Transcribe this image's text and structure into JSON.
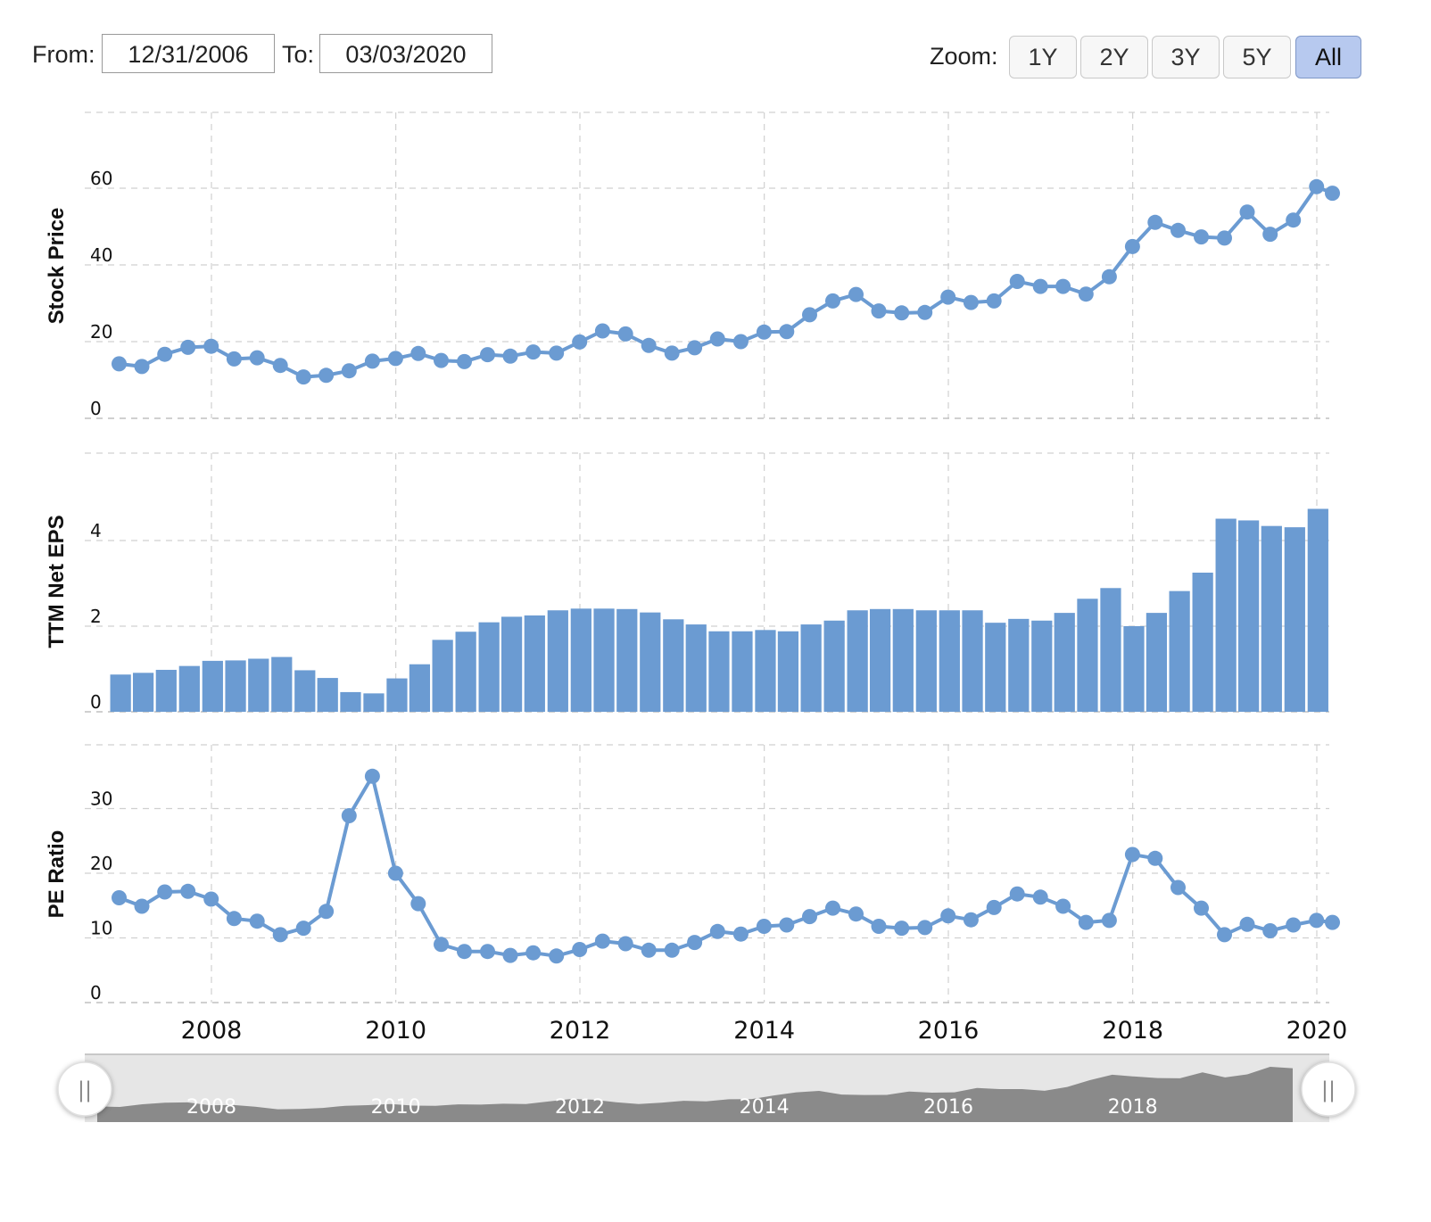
{
  "controls": {
    "from_label": "From:",
    "from_value": "12/31/2006",
    "to_label": "To:",
    "to_value": "03/03/2020",
    "zoom_label": "Zoom:",
    "zoom_options": [
      "1Y",
      "2Y",
      "3Y",
      "5Y",
      "All"
    ],
    "zoom_active": "All",
    "navigator_handle_glyph": "||"
  },
  "colors": {
    "series": "#6b9bd2",
    "grid": "#d0d0d0",
    "navigator_fill": "#8a8a8a",
    "navigator_bg": "#e6e6e6",
    "active_button": "#b7c9ef"
  },
  "chart_data": [
    {
      "type": "line",
      "ylabel": "Stock Price",
      "yticks": [
        0,
        20,
        40,
        60
      ],
      "ylim": [
        0,
        80
      ],
      "x_dates": [
        "2006-12-31",
        "2007-03-31",
        "2007-06-30",
        "2007-09-30",
        "2007-12-31",
        "2008-03-31",
        "2008-06-30",
        "2008-09-30",
        "2008-12-31",
        "2009-03-31",
        "2009-06-30",
        "2009-09-30",
        "2009-12-31",
        "2010-03-31",
        "2010-06-30",
        "2010-09-30",
        "2010-12-31",
        "2011-03-31",
        "2011-06-30",
        "2011-09-30",
        "2011-12-31",
        "2012-03-31",
        "2012-06-30",
        "2012-09-30",
        "2012-12-31",
        "2013-03-31",
        "2013-06-30",
        "2013-09-30",
        "2013-12-31",
        "2014-03-31",
        "2014-06-30",
        "2014-09-30",
        "2014-12-31",
        "2015-03-31",
        "2015-06-30",
        "2015-09-30",
        "2015-12-31",
        "2016-03-31",
        "2016-06-30",
        "2016-09-30",
        "2016-12-31",
        "2017-03-31",
        "2017-06-30",
        "2017-09-30",
        "2017-12-31",
        "2018-03-31",
        "2018-06-30",
        "2018-09-30",
        "2018-12-31",
        "2019-03-31",
        "2019-06-30",
        "2019-09-30",
        "2019-12-31",
        "2020-03-03"
      ],
      "values": [
        14.2,
        13.5,
        16.7,
        18.5,
        18.8,
        15.5,
        15.8,
        13.8,
        10.8,
        11.2,
        12.4,
        14.9,
        15.6,
        16.9,
        15.1,
        14.8,
        16.6,
        16.2,
        17.3,
        17.0,
        19.9,
        22.8,
        22.0,
        19.0,
        17.0,
        18.4,
        20.7,
        20.0,
        22.5,
        22.6,
        27.0,
        30.6,
        32.3,
        28.0,
        27.5,
        27.6,
        31.6,
        30.2,
        30.6,
        35.7,
        34.4,
        34.4,
        32.4,
        36.9,
        44.8,
        51.1,
        49.0,
        47.3,
        47.0,
        53.8,
        48.0,
        51.7,
        60.4,
        58.7
      ]
    },
    {
      "type": "bar",
      "ylabel": "TTM Net EPS",
      "yticks": [
        0,
        2,
        4
      ],
      "ylim": [
        0,
        6
      ],
      "x_dates": [
        "2006-12-31",
        "2007-03-31",
        "2007-06-30",
        "2007-09-30",
        "2007-12-31",
        "2008-03-31",
        "2008-06-30",
        "2008-09-30",
        "2008-12-31",
        "2009-03-31",
        "2009-06-30",
        "2009-09-30",
        "2009-12-31",
        "2010-03-31",
        "2010-06-30",
        "2010-09-30",
        "2010-12-31",
        "2011-03-31",
        "2011-06-30",
        "2011-09-30",
        "2011-12-31",
        "2012-03-31",
        "2012-06-30",
        "2012-09-30",
        "2012-12-31",
        "2013-03-31",
        "2013-06-30",
        "2013-09-30",
        "2013-12-31",
        "2014-03-31",
        "2014-06-30",
        "2014-09-30",
        "2014-12-31",
        "2015-03-31",
        "2015-06-30",
        "2015-09-30",
        "2015-12-31",
        "2016-03-31",
        "2016-06-30",
        "2016-09-30",
        "2016-12-31",
        "2017-03-31",
        "2017-06-30",
        "2017-09-30",
        "2017-12-31",
        "2018-03-31",
        "2018-06-30",
        "2018-09-30",
        "2018-12-31",
        "2019-03-31",
        "2019-06-30",
        "2019-09-30",
        "2019-12-31"
      ],
      "values": [
        0.87,
        0.91,
        0.98,
        1.07,
        1.19,
        1.2,
        1.24,
        1.28,
        0.97,
        0.79,
        0.46,
        0.43,
        0.78,
        1.11,
        1.68,
        1.87,
        2.09,
        2.22,
        2.25,
        2.37,
        2.41,
        2.41,
        2.4,
        2.32,
        2.16,
        2.04,
        1.88,
        1.88,
        1.91,
        1.88,
        2.04,
        2.13,
        2.37,
        2.4,
        2.4,
        2.37,
        2.37,
        2.37,
        2.08,
        2.17,
        2.13,
        2.31,
        2.64,
        2.89,
        2.0,
        2.31,
        2.82,
        3.25,
        4.51,
        4.47,
        4.34,
        4.31,
        4.74
      ]
    },
    {
      "type": "line",
      "ylabel": "PE Ratio",
      "yticks": [
        0,
        10,
        20,
        30
      ],
      "ylim": [
        0,
        40
      ],
      "x_dates": [
        "2006-12-31",
        "2007-03-31",
        "2007-06-30",
        "2007-09-30",
        "2007-12-31",
        "2008-03-31",
        "2008-06-30",
        "2008-09-30",
        "2008-12-31",
        "2009-03-31",
        "2009-06-30",
        "2009-09-30",
        "2009-12-31",
        "2010-03-31",
        "2010-06-30",
        "2010-09-30",
        "2010-12-31",
        "2011-03-31",
        "2011-06-30",
        "2011-09-30",
        "2011-12-31",
        "2012-03-31",
        "2012-06-30",
        "2012-09-30",
        "2012-12-31",
        "2013-03-31",
        "2013-06-30",
        "2013-09-30",
        "2013-12-31",
        "2014-03-31",
        "2014-06-30",
        "2014-09-30",
        "2014-12-31",
        "2015-03-31",
        "2015-06-30",
        "2015-09-30",
        "2015-12-31",
        "2016-03-31",
        "2016-06-30",
        "2016-09-30",
        "2016-12-31",
        "2017-03-31",
        "2017-06-30",
        "2017-09-30",
        "2017-12-31",
        "2018-03-31",
        "2018-06-30",
        "2018-09-30",
        "2018-12-31",
        "2019-03-31",
        "2019-06-30",
        "2019-09-30",
        "2019-12-31",
        "2020-03-03"
      ],
      "values": [
        16.2,
        14.9,
        17.1,
        17.2,
        16.0,
        13.0,
        12.6,
        10.5,
        11.5,
        14.1,
        28.9,
        35.0,
        20.0,
        15.3,
        9.0,
        7.9,
        7.9,
        7.3,
        7.7,
        7.2,
        8.2,
        9.5,
        9.1,
        8.1,
        8.1,
        9.3,
        11.0,
        10.6,
        11.8,
        12.0,
        13.3,
        14.6,
        13.7,
        11.8,
        11.5,
        11.6,
        13.4,
        12.8,
        14.7,
        16.8,
        16.3,
        14.9,
        12.4,
        12.7,
        22.9,
        22.3,
        17.8,
        14.6,
        10.5,
        12.1,
        11.1,
        12.0,
        12.7,
        12.4
      ]
    }
  ],
  "x_axis": {
    "ticks": [
      "2008",
      "2010",
      "2012",
      "2014",
      "2016",
      "2018",
      "2020"
    ]
  },
  "navigator": {
    "ticks": [
      "2008",
      "2010",
      "2012",
      "2014",
      "2016",
      "2018"
    ]
  }
}
